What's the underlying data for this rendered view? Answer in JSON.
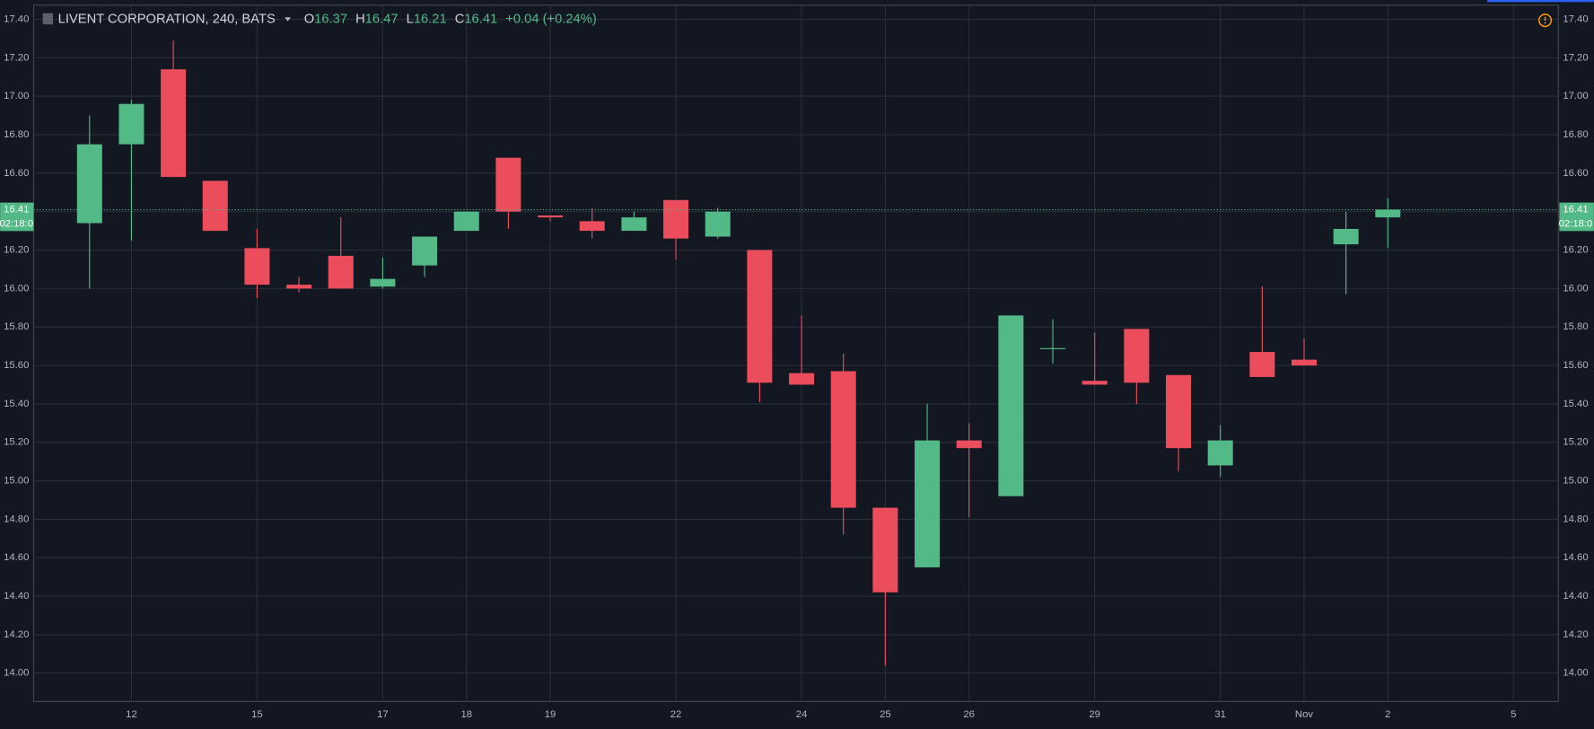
{
  "chart_data": {
    "type": "candlestick",
    "title": "LIVENT CORPORATION, 240, BATS",
    "header": {
      "open_label": "O",
      "open": "16.37",
      "high_label": "H",
      "high": "16.47",
      "low_label": "L",
      "low": "16.21",
      "close_label": "C",
      "close": "16.41",
      "change": "+0.04 (+0.24%)"
    },
    "up_color": "#53b987",
    "down_color": "#eb4d5c",
    "x": [
      0,
      1,
      2,
      3,
      4,
      5,
      6,
      7,
      8,
      9,
      10,
      11,
      12,
      13,
      14,
      15,
      16,
      17,
      18,
      19,
      20,
      21,
      22,
      23,
      24,
      25,
      26,
      27,
      28,
      29,
      30,
      31
    ],
    "open": [
      16.34,
      16.75,
      17.14,
      16.56,
      16.21,
      16.02,
      16.17,
      16.01,
      16.12,
      16.3,
      16.68,
      16.38,
      16.35,
      16.3,
      16.46,
      16.27,
      16.2,
      15.56,
      15.57,
      14.86,
      14.55,
      15.21,
      14.92,
      15.69,
      15.52,
      15.79,
      15.55,
      15.08,
      15.67,
      15.63,
      16.23,
      16.37
    ],
    "high": [
      16.9,
      16.98,
      17.29,
      16.56,
      16.31,
      16.06,
      16.37,
      16.16,
      16.27,
      16.4,
      16.68,
      16.38,
      16.42,
      16.4,
      16.46,
      16.42,
      16.2,
      15.86,
      15.66,
      14.86,
      15.4,
      15.3,
      15.86,
      15.84,
      15.77,
      15.79,
      15.55,
      15.29,
      16.01,
      15.74,
      16.4,
      16.47
    ],
    "low": [
      16.0,
      16.25,
      16.58,
      16.3,
      15.95,
      15.98,
      16.0,
      16.0,
      16.06,
      16.3,
      16.31,
      16.35,
      16.26,
      16.3,
      16.15,
      16.26,
      15.41,
      15.5,
      14.72,
      14.04,
      14.55,
      14.81,
      14.92,
      15.61,
      15.5,
      15.4,
      15.05,
      15.02,
      15.54,
      15.6,
      15.97,
      16.21
    ],
    "close": [
      16.75,
      16.96,
      16.58,
      16.3,
      16.02,
      16.0,
      16.0,
      16.05,
      16.27,
      16.4,
      16.4,
      16.37,
      16.3,
      16.37,
      16.26,
      16.4,
      15.51,
      15.5,
      14.86,
      14.42,
      15.21,
      15.17,
      15.86,
      15.69,
      15.5,
      15.51,
      15.17,
      15.21,
      15.54,
      15.6,
      16.31,
      16.41
    ],
    "xlim": [
      -1.335,
      35.07
    ],
    "xticks": [
      {
        "value": 1,
        "label": "12"
      },
      {
        "value": 4,
        "label": "15"
      },
      {
        "value": 7,
        "label": "17"
      },
      {
        "value": 9,
        "label": "18"
      },
      {
        "value": 11,
        "label": "19"
      },
      {
        "value": 14,
        "label": "22"
      },
      {
        "value": 17,
        "label": "24"
      },
      {
        "value": 19,
        "label": "25"
      },
      {
        "value": 21,
        "label": "26"
      },
      {
        "value": 24,
        "label": "29"
      },
      {
        "value": 27,
        "label": "31"
      },
      {
        "value": 29,
        "label": "Nov"
      },
      {
        "value": 31,
        "label": "2"
      },
      {
        "value": 34,
        "label": "5"
      }
    ],
    "ylim": [
      13.852,
      17.474
    ],
    "yticks": [
      {
        "value": 14.0,
        "label": "14.00"
      },
      {
        "value": 14.2,
        "label": "14.20"
      },
      {
        "value": 14.4,
        "label": "14.40"
      },
      {
        "value": 14.6,
        "label": "14.60"
      },
      {
        "value": 14.8,
        "label": "14.80"
      },
      {
        "value": 15.0,
        "label": "15.00"
      },
      {
        "value": 15.2,
        "label": "15.20"
      },
      {
        "value": 15.4,
        "label": "15.40"
      },
      {
        "value": 15.6,
        "label": "15.60"
      },
      {
        "value": 15.8,
        "label": "15.80"
      },
      {
        "value": 16.0,
        "label": "16.00"
      },
      {
        "value": 16.2,
        "label": "16.20"
      },
      {
        "value": 16.4,
        "label": "16.40"
      },
      {
        "value": 16.6,
        "label": "16.60"
      },
      {
        "value": 16.8,
        "label": "16.80"
      },
      {
        "value": 17.0,
        "label": "17.00"
      },
      {
        "value": 17.2,
        "label": "17.20"
      },
      {
        "value": 17.4,
        "label": "17.40"
      }
    ],
    "last_price": {
      "value": 16.41,
      "label": "16.41"
    },
    "countdown": "02:18:0",
    "grid": true
  }
}
